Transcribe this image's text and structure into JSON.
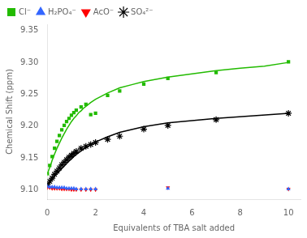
{
  "chart_data": {
    "type": "scatter",
    "xlabel": "Equivalents of TBA salt added",
    "ylabel": "Chemical Shift (ppm)",
    "xlim": [
      0,
      10.5
    ],
    "ylim": [
      9.085,
      9.36
    ],
    "xticks": [
      0,
      2,
      4,
      6,
      8,
      10
    ],
    "yticks": [
      {
        "value": 9.1,
        "label": "9.10"
      },
      9.15,
      {
        "value": 9.2,
        "label": "9.20"
      },
      9.25,
      {
        "value": 9.3,
        "label": "9.30"
      },
      9.35
    ],
    "grid": false,
    "legend": "upper left",
    "series": [
      {
        "type": "line",
        "line_style": "solid",
        "color": "#22bb00",
        "x": [
          0.0,
          0.05,
          0.1,
          0.15,
          0.2,
          0.25,
          0.3,
          0.4,
          0.5,
          0.6,
          0.7,
          0.8,
          0.9,
          1.0,
          1.1,
          1.2,
          1.3,
          1.4,
          1.5,
          1.6,
          1.8,
          2.0,
          2.5,
          3.0,
          3.5,
          4.0,
          5.0,
          6.0,
          7.0,
          8.0,
          9.0,
          10.0
        ],
        "values": [
          9.125,
          9.13,
          9.135,
          9.14,
          9.146,
          9.151,
          9.156,
          9.165,
          9.173,
          9.181,
          9.188,
          9.195,
          9.201,
          9.207,
          9.212,
          9.216,
          9.221,
          9.224,
          9.228,
          9.231,
          9.237,
          9.242,
          9.252,
          9.26,
          9.265,
          9.27,
          9.277,
          9.282,
          9.287,
          9.291,
          9.294,
          9.3
        ]
      },
      {
        "type": "line",
        "line_style": "solid",
        "color": "#000000",
        "x": [
          0.0,
          0.1,
          0.2,
          0.3,
          0.4,
          0.5,
          0.6,
          0.7,
          0.8,
          0.9,
          1.0,
          1.1,
          1.2,
          1.4,
          1.6,
          1.8,
          2.0,
          2.5,
          3.0,
          4.0,
          5.0,
          7.0,
          10.0
        ],
        "values": [
          9.108,
          9.112,
          9.116,
          9.121,
          9.125,
          9.129,
          9.133,
          9.137,
          9.141,
          9.145,
          9.148,
          9.152,
          9.155,
          9.161,
          9.166,
          9.171,
          9.175,
          9.183,
          9.19,
          9.199,
          9.205,
          9.212,
          9.22
        ]
      },
      {
        "name": "Cl⁻",
        "type": "scatter",
        "marker": "square",
        "color": "#22bb00",
        "x": [
          0.0,
          0.1,
          0.2,
          0.3,
          0.4,
          0.5,
          0.6,
          0.7,
          0.8,
          0.9,
          1.0,
          1.1,
          1.2,
          1.4,
          1.6,
          1.8,
          2.0,
          2.5,
          3.0,
          4.0,
          5.0,
          7.0,
          10.0
        ],
        "values": [
          9.125,
          9.138,
          9.152,
          9.165,
          9.176,
          9.185,
          9.194,
          9.201,
          9.207,
          9.212,
          9.217,
          9.221,
          9.225,
          9.23,
          9.234,
          9.218,
          9.22,
          9.248,
          9.255,
          9.266,
          9.275,
          9.284,
          9.301
        ]
      },
      {
        "name": "H₂PO₄⁻",
        "type": "scatter",
        "marker": "triangle_up",
        "color": "#3366ff",
        "x": [
          0.0,
          0.1,
          0.2,
          0.3,
          0.4,
          0.5,
          0.6,
          0.7,
          0.8,
          0.9,
          1.0,
          1.1,
          1.2,
          1.4,
          1.6,
          1.8,
          2.0,
          5.0,
          10.0
        ],
        "values": [
          9.105,
          9.104,
          9.104,
          9.104,
          9.103,
          9.103,
          9.103,
          9.103,
          9.102,
          9.102,
          9.102,
          9.102,
          9.101,
          9.101,
          9.101,
          9.101,
          9.101,
          9.102,
          9.101
        ]
      },
      {
        "name": "AcO⁻",
        "type": "scatter",
        "marker": "triangle_down",
        "color": "#ff0000",
        "x": [
          0.0,
          0.1,
          0.2,
          0.3,
          0.4,
          0.5,
          0.6,
          0.7,
          0.8,
          0.9,
          1.0,
          1.1,
          1.2,
          1.4,
          1.6,
          1.8,
          2.0,
          5.0,
          10.0
        ],
        "values": [
          9.103,
          9.103,
          9.102,
          9.102,
          9.102,
          9.102,
          9.101,
          9.101,
          9.101,
          9.101,
          9.1,
          9.1,
          9.1,
          9.1,
          9.1,
          9.1,
          9.1,
          9.103,
          9.101
        ]
      },
      {
        "name": "SO₄²⁻",
        "type": "scatter",
        "marker": "star",
        "color": "#000000",
        "x": [
          0.0,
          0.1,
          0.2,
          0.3,
          0.4,
          0.5,
          0.6,
          0.7,
          0.8,
          0.9,
          1.0,
          1.1,
          1.2,
          1.4,
          1.6,
          1.8,
          2.0,
          2.5,
          3.0,
          4.0,
          5.0,
          7.0,
          10.0
        ],
        "values": [
          9.108,
          9.113,
          9.118,
          9.124,
          9.129,
          9.134,
          9.139,
          9.143,
          9.147,
          9.151,
          9.154,
          9.157,
          9.16,
          9.165,
          9.168,
          9.171,
          9.174,
          9.179,
          9.184,
          9.195,
          9.201,
          9.21,
          9.22
        ]
      }
    ]
  }
}
